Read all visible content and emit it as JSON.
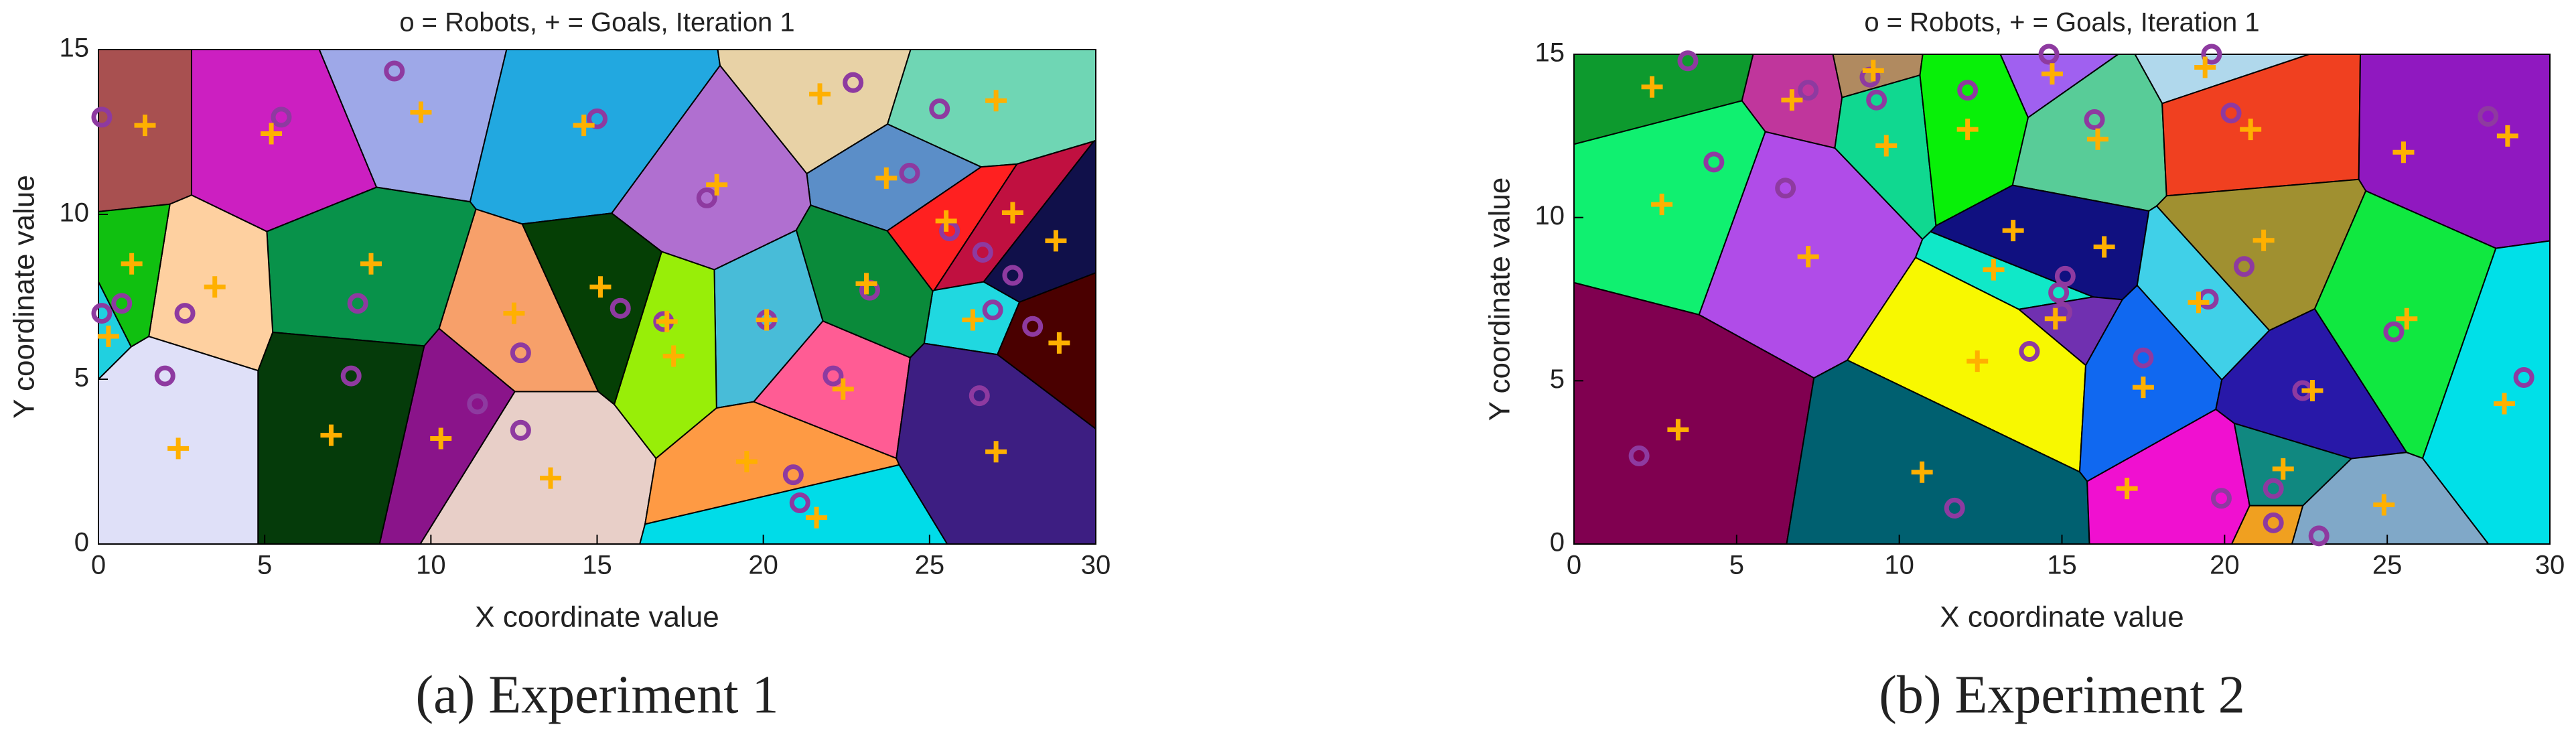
{
  "chart_data": [
    {
      "type": "scatter",
      "title": "o = Robots, + = Goals, Iteration 1",
      "xlabel": "X coordinate value",
      "ylabel": "Y coordinate value",
      "caption": "(a) Experiment 1",
      "xlim": [
        0,
        30
      ],
      "ylim": [
        0,
        15
      ],
      "xticks": [
        0,
        5,
        10,
        15,
        20,
        25,
        30
      ],
      "yticks": [
        0,
        5,
        10,
        15
      ],
      "grid": false,
      "series": [
        {
          "marker": "o",
          "color": "#8e3aa0",
          "x": [
            0.1,
            5.5,
            8.9,
            15.0,
            22.7,
            25.3,
            24.4,
            18.3,
            25.6,
            26.6,
            27.5,
            26.9,
            28.1,
            23.2,
            20.1,
            17.0,
            15.7,
            12.7,
            11.4,
            12.7,
            7.8,
            7.6,
            2.6,
            0.7,
            0.1,
            2.0,
            22.1,
            26.5,
            20.9,
            21.1
          ],
          "y": [
            12.95,
            12.95,
            14.35,
            12.9,
            14.0,
            13.2,
            11.25,
            10.5,
            9.5,
            8.85,
            8.15,
            7.1,
            6.6,
            7.7,
            6.8,
            6.75,
            7.15,
            5.8,
            4.25,
            3.45,
            7.3,
            5.1,
            7.0,
            7.3,
            7.0,
            5.1,
            5.1,
            4.5,
            2.1,
            1.25
          ]
        },
        {
          "marker": "+",
          "color": "#ffb000",
          "x": [
            1.4,
            5.2,
            9.7,
            14.6,
            21.7,
            27.0,
            18.6,
            23.7,
            25.5,
            27.5,
            28.8,
            23.1,
            26.3,
            28.9,
            20.1,
            17.1,
            17.3,
            15.1,
            12.5,
            8.2,
            3.5,
            1.0,
            0.3,
            22.4,
            27.0,
            19.5,
            21.6,
            13.6,
            10.3,
            7.0,
            2.4
          ],
          "y": [
            12.7,
            12.45,
            13.1,
            12.7,
            13.65,
            13.45,
            10.9,
            11.1,
            9.8,
            10.05,
            9.2,
            7.9,
            6.8,
            6.1,
            6.8,
            6.75,
            5.7,
            7.8,
            7.0,
            8.5,
            7.8,
            8.5,
            6.3,
            4.7,
            2.8,
            2.5,
            0.8,
            2.0,
            3.2,
            3.3,
            2.9
          ]
        }
      ],
      "region_colors": [
        "#a85050",
        "#cc1fc1",
        "#9ea8e8",
        "#22a8e0",
        "#e8d2a6",
        "#6fd6b4",
        "#5b8ec8",
        "#b06fd0",
        "#ff2020",
        "#c01040",
        "#10104a",
        "#20d8e0",
        "#4a0000",
        "#0a8a3a",
        "#48bcd8",
        "#98ee08",
        "#053f05",
        "#f7a06a",
        "#8a148a",
        "#e8cfc8",
        "#08924a",
        "#053b0a",
        "#fed0a0",
        "#10c010",
        "#20d0e0",
        "#dfe0f8",
        "#ff5c94",
        "#3d1e82",
        "#fe9a44",
        "#00dce8"
      ]
    },
    {
      "type": "scatter",
      "title": "o = Robots, + = Goals, Iteration 1",
      "xlabel": "X coordinate value",
      "ylabel": "Y coordinate value",
      "caption": "(b) Experiment 2",
      "xlim": [
        0,
        30
      ],
      "ylim": [
        0,
        15
      ],
      "xticks": [
        0,
        5,
        10,
        15,
        20,
        25,
        30
      ],
      "yticks": [
        0,
        5,
        10,
        15
      ],
      "grid": false,
      "series": [
        {
          "marker": "o",
          "color": "#8e3aa0",
          "x": [
            3.5,
            7.2,
            9.1,
            9.3,
            12.1,
            14.6,
            19.6,
            16.0,
            20.2,
            28.1,
            4.3,
            6.5,
            15.1,
            14.9,
            15.0,
            20.6,
            19.5,
            25.2,
            29.2,
            14.0,
            17.5,
            22.4,
            2.0,
            11.7,
            19.9,
            21.5,
            21.5,
            22.9
          ],
          "y": [
            14.8,
            13.9,
            14.3,
            13.6,
            13.9,
            15.0,
            15.0,
            13.0,
            13.2,
            13.1,
            11.7,
            10.9,
            8.2,
            7.7,
            7.1,
            8.5,
            7.5,
            6.5,
            5.1,
            5.9,
            5.7,
            4.7,
            2.7,
            1.1,
            1.4,
            1.7,
            0.65,
            0.25
          ]
        },
        {
          "marker": "+",
          "color": "#ffb000",
          "x": [
            2.4,
            6.7,
            9.2,
            14.7,
            19.4,
            20.8,
            12.1,
            9.6,
            16.1,
            28.7,
            25.5,
            2.7,
            7.2,
            13.5,
            16.3,
            21.2,
            12.9,
            14.8,
            19.2,
            25.6,
            28.6,
            12.4,
            17.5,
            22.7,
            3.2,
            10.7,
            17.0,
            21.8,
            24.9
          ],
          "y": [
            14.0,
            13.6,
            14.5,
            14.4,
            14.6,
            12.7,
            12.7,
            12.2,
            12.4,
            12.5,
            12.0,
            10.4,
            8.8,
            9.6,
            9.1,
            9.3,
            8.4,
            6.9,
            7.4,
            6.9,
            4.3,
            5.6,
            4.8,
            4.7,
            3.5,
            2.2,
            1.7,
            2.3,
            1.2
          ]
        }
      ],
      "region_colors": [
        "#0d9a2e",
        "#c0369c",
        "#b08a60",
        "#10d890",
        "#08f008",
        "#a060f0",
        "#b0d8ec",
        "#58cc98",
        "#f04020",
        "#9018c0",
        "#10f070",
        "#b04ce8",
        "#101080",
        "#10e8c8",
        "#7030b0",
        "#a09030",
        "#40d0e8",
        "#10e840",
        "#00e0e8",
        "#f8f800",
        "#1068f0",
        "#2818a8",
        "#800050",
        "#006070",
        "#f010d0",
        "#108880",
        "#f0a020",
        "#80a8c8"
      ]
    }
  ]
}
